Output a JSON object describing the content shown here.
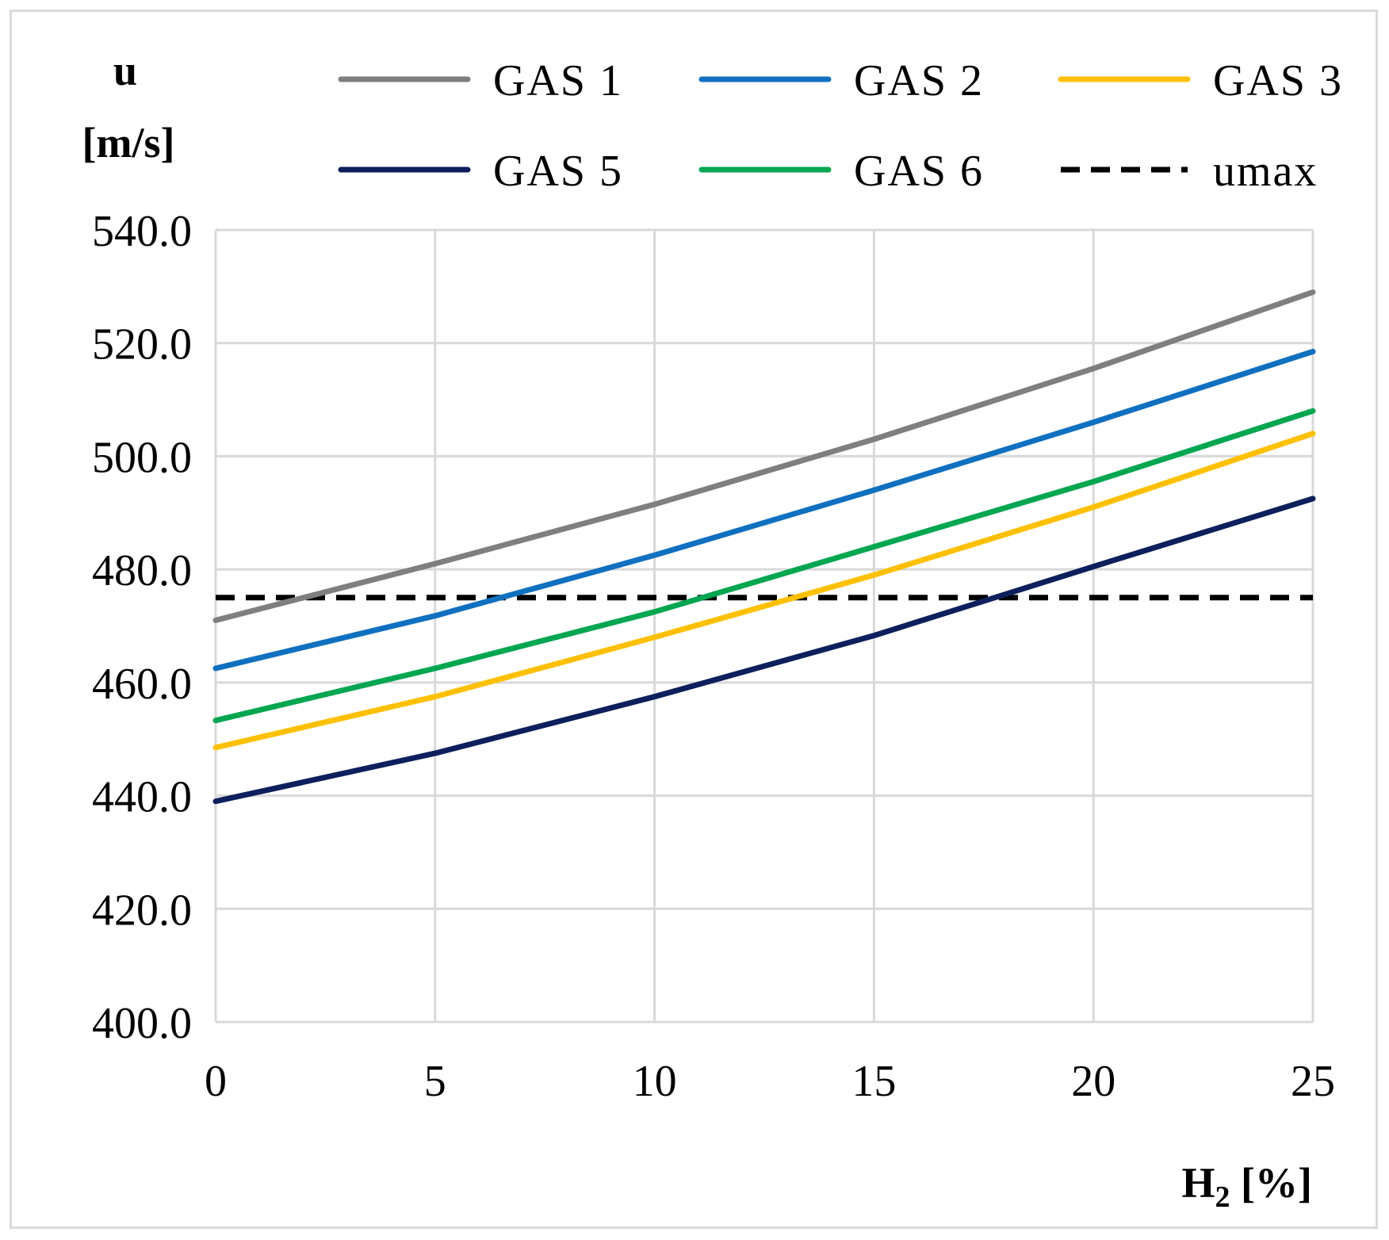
{
  "chart_data": {
    "type": "line",
    "xlabel_main": "H",
    "xlabel_sub": "2",
    "xlabel_unit": " [%]",
    "ylabel_line1": "u",
    "ylabel_line2": "[m/s]",
    "x": [
      0,
      5,
      10,
      15,
      20,
      25
    ],
    "xticks": [
      "0",
      "5",
      "10",
      "15",
      "20",
      "25"
    ],
    "yticks": [
      "400.0",
      "420.0",
      "440.0",
      "460.0",
      "480.0",
      "500.0",
      "520.0",
      "540.0"
    ],
    "ylim": [
      400,
      540
    ],
    "xlim": [
      0,
      25
    ],
    "grid": true,
    "legend_position": "top",
    "series": [
      {
        "name": "GAS 1",
        "color": "#7f7f7f",
        "dash": false,
        "values": [
          471.0,
          481.0,
          491.5,
          503.0,
          515.5,
          529.0
        ]
      },
      {
        "name": "GAS 2",
        "color": "#1070c0",
        "dash": false,
        "values": [
          462.5,
          471.8,
          482.5,
          494.0,
          506.0,
          518.5
        ]
      },
      {
        "name": "GAS 3",
        "color": "#ffc000",
        "dash": false,
        "values": [
          448.5,
          457.5,
          468.0,
          479.0,
          491.0,
          504.0
        ]
      },
      {
        "name": "GAS 5",
        "color": "#0d1f5c",
        "dash": false,
        "values": [
          439.0,
          447.5,
          457.5,
          468.3,
          480.5,
          492.5
        ]
      },
      {
        "name": "GAS 6",
        "color": "#00a650",
        "dash": false,
        "values": [
          453.3,
          462.5,
          472.5,
          484.0,
          495.5,
          508.0
        ]
      },
      {
        "name": "umax",
        "color": "#000000",
        "dash": true,
        "values": [
          475.0,
          475.0,
          475.0,
          475.0,
          475.0,
          475.0
        ]
      }
    ]
  }
}
